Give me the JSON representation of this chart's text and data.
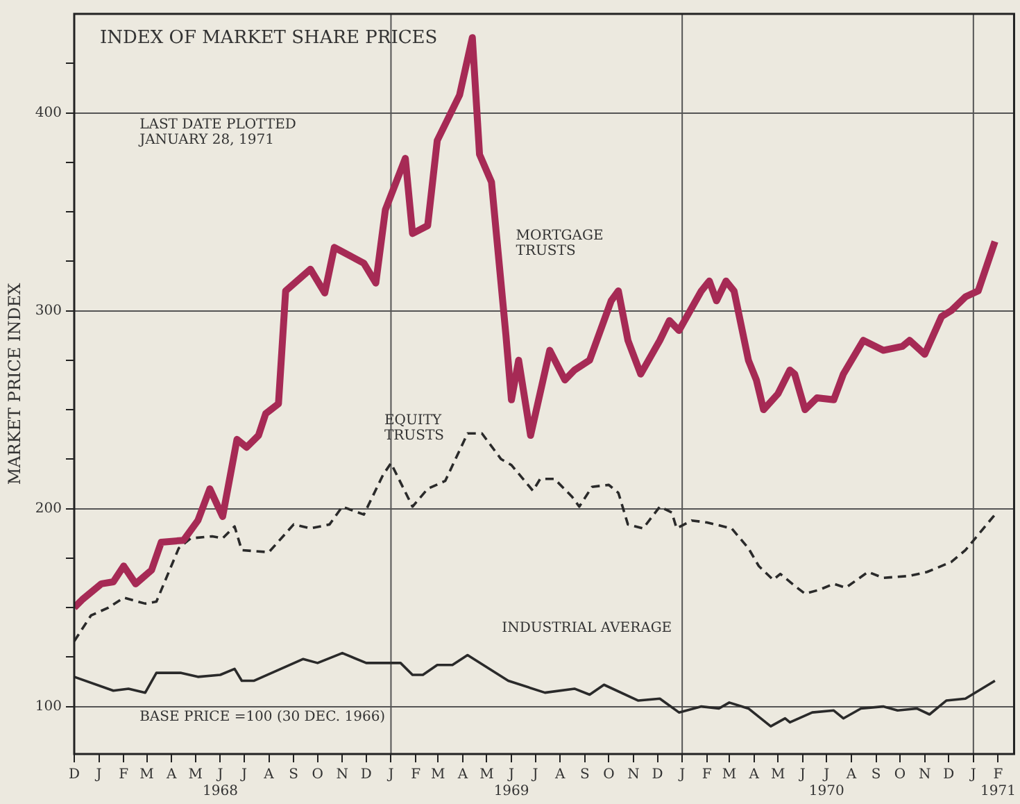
{
  "chart_data": {
    "type": "line",
    "title": "INDEX OF MARKET SHARE PRICES",
    "ylabel": "MARKET PRICE INDEX",
    "annotations": [
      "LAST DATE PLOTTED JANUARY 28, 1971",
      "BASE PRICE =100 (30 DEC. 1966)"
    ],
    "xlim": [
      "1967-12",
      "1971-02-21"
    ],
    "ylim": [
      76,
      450
    ],
    "xticks": [
      {
        "value": "1967-12",
        "label": "D"
      },
      {
        "value": "1968-01",
        "label": "J"
      },
      {
        "value": "1968-02",
        "label": "F"
      },
      {
        "value": "1968-03",
        "label": "M"
      },
      {
        "value": "1968-04",
        "label": "A"
      },
      {
        "value": "1968-05",
        "label": "M"
      },
      {
        "value": "1968-06",
        "label": "J\n1968"
      },
      {
        "value": "1968-07",
        "label": "J"
      },
      {
        "value": "1968-08",
        "label": "A"
      },
      {
        "value": "1968-09",
        "label": "S"
      },
      {
        "value": "1968-10",
        "label": "O"
      },
      {
        "value": "1968-11",
        "label": "N"
      },
      {
        "value": "1968-12",
        "label": "D"
      },
      {
        "value": "1969-01",
        "label": "J"
      },
      {
        "value": "1969-02",
        "label": "F"
      },
      {
        "value": "1969-03",
        "label": "M"
      },
      {
        "value": "1969-04",
        "label": "A"
      },
      {
        "value": "1969-05",
        "label": "M"
      },
      {
        "value": "1969-06",
        "label": "J\n1969"
      },
      {
        "value": "1969-07",
        "label": "J"
      },
      {
        "value": "1969-08",
        "label": "A"
      },
      {
        "value": "1969-09",
        "label": "S"
      },
      {
        "value": "1969-10",
        "label": "O"
      },
      {
        "value": "1969-11",
        "label": "N"
      },
      {
        "value": "1969-12",
        "label": "D"
      },
      {
        "value": "1970-01",
        "label": "J"
      },
      {
        "value": "1970-02",
        "label": "F"
      },
      {
        "value": "1970-03",
        "label": "M"
      },
      {
        "value": "1970-04",
        "label": "A"
      },
      {
        "value": "1970-05",
        "label": "M"
      },
      {
        "value": "1970-06",
        "label": "J"
      },
      {
        "value": "1970-07",
        "label": "J\n1970"
      },
      {
        "value": "1970-08",
        "label": "A"
      },
      {
        "value": "1970-09",
        "label": "S"
      },
      {
        "value": "1970-10",
        "label": "O"
      },
      {
        "value": "1970-11",
        "label": "N"
      },
      {
        "value": "1970-12",
        "label": "D"
      },
      {
        "value": "1971-01",
        "label": "J"
      },
      {
        "value": "1971-02",
        "label": "F\n1971"
      }
    ],
    "yticks": [
      {
        "value": 100,
        "label": "100"
      },
      {
        "value": 125,
        "label": null
      },
      {
        "value": 150,
        "label": null
      },
      {
        "value": 175,
        "label": null
      },
      {
        "value": 200,
        "label": "200"
      },
      {
        "value": 225,
        "label": null
      },
      {
        "value": 250,
        "label": null
      },
      {
        "value": 275,
        "label": null
      },
      {
        "value": 300,
        "label": "300"
      },
      {
        "value": 325,
        "label": null
      },
      {
        "value": 350,
        "label": null
      },
      {
        "value": 375,
        "label": null
      },
      {
        "value": 400,
        "label": "400"
      },
      {
        "value": 425,
        "label": null
      }
    ],
    "grid": "y",
    "legend": false,
    "marker": "none",
    "ref_lines": [
      {
        "axis": "x",
        "value": "1969-01",
        "color": "#555555"
      },
      {
        "axis": "x",
        "value": "1970-01",
        "color": "#555555"
      },
      {
        "axis": "x",
        "value": "1971-01",
        "color": "#555555"
      }
    ],
    "series": [
      {
        "name": "MORTGAGE TRUSTS",
        "color": "#a62a55",
        "line_style": "solid",
        "x": [
          "1967-12-01",
          "1967-12-11",
          "1968-01-04",
          "1968-01-19",
          "1968-02-01",
          "1968-02-16",
          "1968-03-07",
          "1968-03-19",
          "1968-04-16",
          "1968-05-04",
          "1968-05-19",
          "1968-06-04",
          "1968-06-22",
          "1968-07-04",
          "1968-07-19",
          "1968-07-28",
          "1968-08-13",
          "1968-08-22",
          "1968-09-22",
          "1968-10-10",
          "1968-10-22",
          "1968-11-28",
          "1968-12-13",
          "1968-12-25",
          "1969-01-19",
          "1969-01-28",
          "1969-02-16",
          "1969-02-28",
          "1969-03-28",
          "1969-04-13",
          "1969-04-22",
          "1969-05-07",
          "1969-05-25",
          "1969-06-01",
          "1969-06-10",
          "1969-06-25",
          "1969-07-19",
          "1969-08-07",
          "1969-08-19",
          "1969-09-07",
          "1969-10-04",
          "1969-10-13",
          "1969-10-25",
          "1969-11-10",
          "1969-12-04",
          "1969-12-16",
          "1969-12-28",
          "1970-01-25",
          "1970-02-04",
          "1970-02-13",
          "1970-02-25",
          "1970-03-07",
          "1970-03-25",
          "1970-04-04",
          "1970-04-13",
          "1970-05-01",
          "1970-05-16",
          "1970-05-22",
          "1970-06-04",
          "1970-06-19",
          "1970-07-10",
          "1970-07-22",
          "1970-08-16",
          "1970-09-10",
          "1970-10-04",
          "1970-10-13",
          "1970-11-01",
          "1970-11-22",
          "1970-12-04",
          "1970-12-22",
          "1971-01-07",
          "1971-01-28"
        ],
        "values": [
          150,
          154,
          162,
          163,
          171,
          162,
          169,
          183,
          184,
          194,
          210,
          196,
          235,
          231,
          237,
          248,
          253,
          310,
          321,
          309,
          332,
          324,
          314,
          351,
          377,
          339,
          343,
          386,
          409,
          438,
          379,
          365,
          288,
          255,
          275,
          237,
          280,
          265,
          270,
          275,
          305,
          310,
          285,
          268,
          285,
          295,
          290,
          310,
          315,
          305,
          315,
          310,
          275,
          265,
          250,
          258,
          270,
          268,
          250,
          256,
          255,
          268,
          285,
          280,
          282,
          285,
          278,
          297,
          300,
          307,
          310,
          335
        ]
      },
      {
        "name": "EQUITY TRUSTS",
        "color": "#2a2a2a",
        "line_style": "dashed",
        "x": [
          "1967-12-01",
          "1967-12-22",
          "1968-01-13",
          "1968-02-01",
          "1968-02-28",
          "1968-03-13",
          "1968-04-10",
          "1968-04-25",
          "1968-05-22",
          "1968-06-04",
          "1968-06-19",
          "1968-06-28",
          "1968-08-01",
          "1968-09-01",
          "1968-09-22",
          "1968-10-16",
          "1968-11-01",
          "1968-11-28",
          "1968-12-22",
          "1969-01-01",
          "1969-01-28",
          "1969-02-16",
          "1969-03-10",
          "1969-04-07",
          "1969-04-25",
          "1969-05-19",
          "1969-06-01",
          "1969-06-28",
          "1969-07-07",
          "1969-07-25",
          "1969-08-16",
          "1969-08-25",
          "1969-09-10",
          "1969-10-01",
          "1969-10-13",
          "1969-10-25",
          "1969-11-13",
          "1969-12-04",
          "1969-12-19",
          "1969-12-25",
          "1970-01-13",
          "1970-02-01",
          "1970-03-04",
          "1970-03-25",
          "1970-04-07",
          "1970-04-25",
          "1970-05-04",
          "1970-05-22",
          "1970-06-04",
          "1970-06-22",
          "1970-07-10",
          "1970-07-25",
          "1970-08-22",
          "1970-09-10",
          "1970-10-13",
          "1970-11-04",
          "1970-12-04",
          "1970-12-22",
          "1971-01-28"
        ],
        "values": [
          133,
          146,
          150,
          155,
          152,
          153,
          180,
          185,
          186,
          185,
          191,
          179,
          178,
          192,
          190,
          192,
          201,
          197,
          217,
          223,
          201,
          210,
          214,
          238,
          238,
          225,
          222,
          209,
          215,
          215,
          206,
          201,
          211,
          212,
          208,
          192,
          190,
          201,
          198,
          190,
          194,
          193,
          190,
          180,
          171,
          164,
          167,
          161,
          157,
          159,
          162,
          160,
          168,
          165,
          166,
          168,
          173,
          179,
          197
        ]
      },
      {
        "name": "INDUSTRIAL AVERAGE",
        "color": "#2a2a2a",
        "line_style": "solid",
        "x": [
          "1967-12-01",
          "1968-01-19",
          "1968-02-07",
          "1968-02-28",
          "1968-03-13",
          "1968-04-13",
          "1968-05-04",
          "1968-06-01",
          "1968-06-19",
          "1968-06-28",
          "1968-07-13",
          "1968-09-13",
          "1968-10-01",
          "1968-11-01",
          "1968-12-01",
          "1969-01-13",
          "1969-01-28",
          "1969-02-10",
          "1969-02-28",
          "1969-03-19",
          "1969-04-07",
          "1969-05-28",
          "1969-07-13",
          "1969-08-19",
          "1969-09-07",
          "1969-09-25",
          "1969-11-07",
          "1969-12-04",
          "1969-12-28",
          "1970-01-25",
          "1970-02-16",
          "1970-03-01",
          "1970-03-25",
          "1970-04-22",
          "1970-05-10",
          "1970-05-16",
          "1970-06-13",
          "1970-07-10",
          "1970-07-22",
          "1970-08-13",
          "1970-09-10",
          "1970-09-28",
          "1970-10-22",
          "1970-11-07",
          "1970-11-28",
          "1970-12-22",
          "1971-01-28"
        ],
        "values": [
          115,
          108,
          109,
          107,
          117,
          117,
          115,
          116,
          119,
          113,
          113,
          124,
          122,
          127,
          122,
          122,
          116,
          116,
          121,
          121,
          126,
          113,
          107,
          109,
          106,
          111,
          103,
          104,
          97,
          100,
          99,
          102,
          99,
          90,
          94,
          92,
          97,
          98,
          94,
          99,
          100,
          98,
          99,
          96,
          103,
          104,
          113
        ]
      }
    ]
  }
}
